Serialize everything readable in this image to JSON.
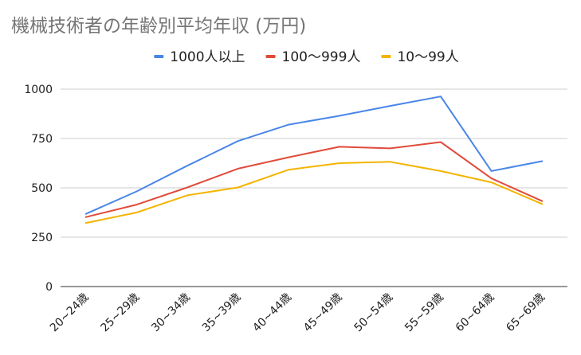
{
  "chart_data": {
    "type": "line",
    "title": "機械技術者の年齢別平均年収 (万円)",
    "xlabel": "",
    "ylabel": "",
    "categories": [
      "20~24歳",
      "25~29歳",
      "30~34歳",
      "35~39歳",
      "40~44歳",
      "45~49歳",
      "50~54歳",
      "55~59歳",
      "60~64歳",
      "65~69歳"
    ],
    "ylim": [
      0,
      1000
    ],
    "yticks": [
      0,
      250,
      500,
      750,
      1000
    ],
    "grid": true,
    "legend_position": "top",
    "series": [
      {
        "name": "1000人以上",
        "color": "#4a86e8",
        "values": [
          368,
          482,
          612,
          737,
          820,
          865,
          915,
          963,
          585,
          635
        ]
      },
      {
        "name": "100〜999人",
        "color": "#e04b3a",
        "values": [
          352,
          415,
          502,
          597,
          655,
          708,
          700,
          732,
          548,
          433
        ]
      },
      {
        "name": "10〜99人",
        "color": "#f4b400",
        "values": [
          322,
          375,
          462,
          502,
          592,
          625,
          632,
          585,
          528,
          418
        ]
      }
    ]
  }
}
